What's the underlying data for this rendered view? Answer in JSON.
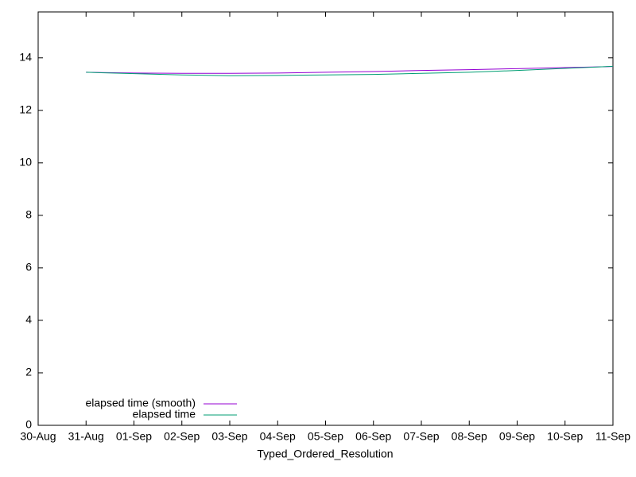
{
  "chart_data": {
    "type": "line",
    "x_label": "Typed_Ordered_Resolution",
    "x": [
      "31-Aug",
      "01-Sep",
      "02-Sep",
      "03-Sep",
      "04-Sep",
      "05-Sep",
      "06-Sep",
      "07-Sep",
      "08-Sep",
      "09-Sep",
      "10-Sep",
      "11-Sep"
    ],
    "series": [
      {
        "name": "elapsed time (smooth)",
        "color": "#9400d3",
        "values": [
          13.45,
          13.42,
          13.41,
          13.41,
          13.42,
          13.45,
          13.48,
          13.52,
          13.55,
          13.59,
          13.63,
          13.67
        ]
      },
      {
        "name": "elapsed time",
        "color": "#009e73",
        "values": [
          13.45,
          13.4,
          13.35,
          13.32,
          13.33,
          13.35,
          13.37,
          13.41,
          13.45,
          13.52,
          13.6,
          13.68
        ]
      }
    ],
    "xticks": [
      "30-Aug",
      "31-Aug",
      "01-Sep",
      "02-Sep",
      "03-Sep",
      "04-Sep",
      "05-Sep",
      "06-Sep",
      "07-Sep",
      "08-Sep",
      "09-Sep",
      "10-Sep",
      "11-Sep"
    ],
    "ylim": [
      0,
      15.75
    ],
    "yticks": [
      0,
      2,
      4,
      6,
      8,
      10,
      12,
      14
    ],
    "legend": "bottom-left"
  }
}
